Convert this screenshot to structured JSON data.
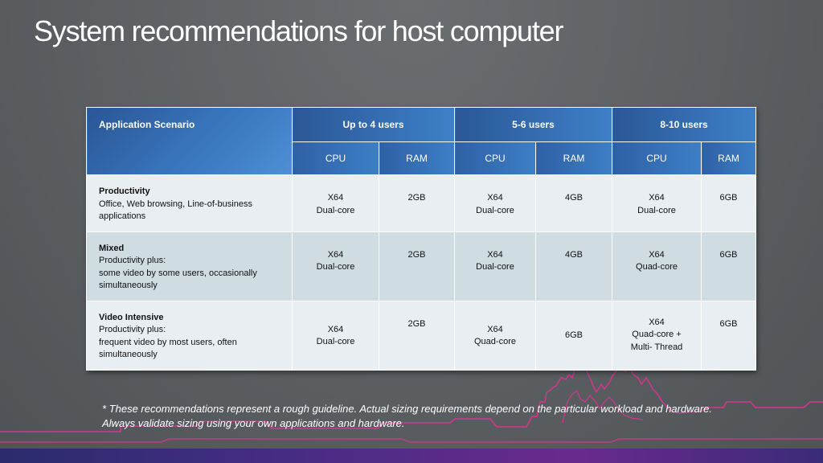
{
  "title": "System recommendations for host computer",
  "table": {
    "scenario_header": "Application Scenario",
    "groups": [
      "Up to 4 users",
      "5-6 users",
      "8-10 users"
    ],
    "sub_headers": [
      "CPU",
      "RAM",
      "CPU",
      "RAM",
      "CPU",
      "RAM"
    ],
    "rows": [
      {
        "name": "Productivity",
        "desc": "Office, Web browsing, Line-of-business applications",
        "cells": [
          [
            "X64",
            "Dual-core"
          ],
          [
            "2GB"
          ],
          [
            "X64",
            "Dual-core"
          ],
          [
            "4GB"
          ],
          [
            "X64",
            "Dual-core"
          ],
          [
            "6GB"
          ]
        ]
      },
      {
        "name": "Mixed",
        "desc": "Productivity plus:\nsome video by some users, occasionally simultaneously",
        "cells": [
          [
            "X64",
            "Dual-core"
          ],
          [
            "2GB"
          ],
          [
            "X64",
            "Dual-core"
          ],
          [
            "4GB"
          ],
          [
            "X64",
            "Quad-core"
          ],
          [
            "6GB"
          ]
        ]
      },
      {
        "name": "Video Intensive",
        "desc": "Productivity plus:\nfrequent video by most users, often simultaneously",
        "cells": [
          [
            "X64",
            "Dual-core"
          ],
          [
            "2GB"
          ],
          [
            "X64",
            "Quad-core"
          ],
          [
            "6GB"
          ],
          [
            "X64",
            "Quad-core +",
            "Multi- Thread"
          ],
          [
            "6GB"
          ]
        ]
      }
    ]
  },
  "footnote": "*  These recommendations represent a rough guideline. Actual sizing requirements depend on the particular workload and hardware.  Always validate sizing using your own applications and hardware.",
  "colors": {
    "accent_line": "#d4368e",
    "header_blue": "#3b79c0"
  }
}
